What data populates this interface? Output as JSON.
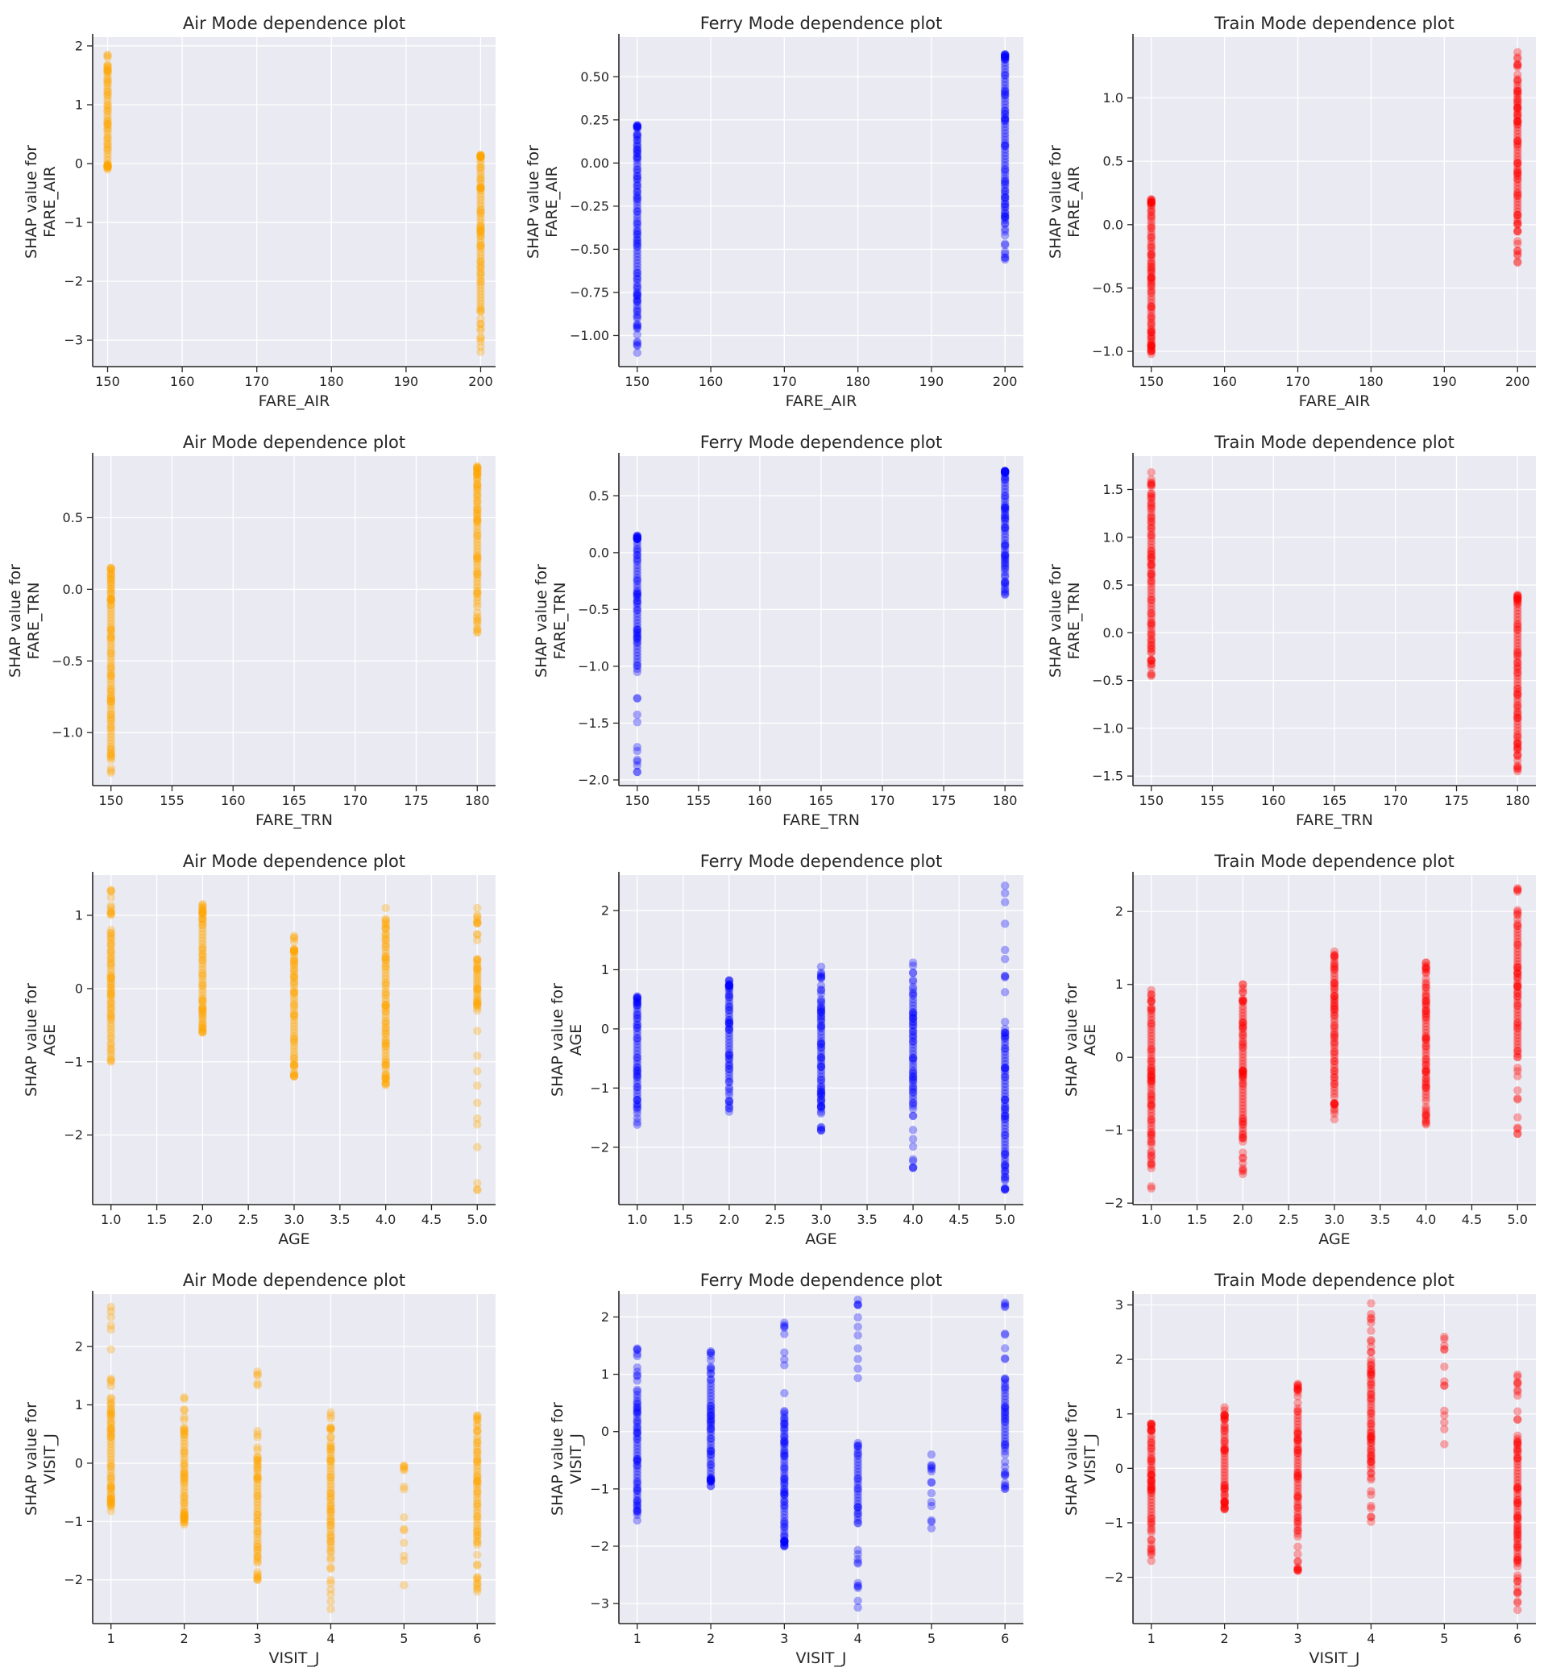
{
  "colors": {
    "air": "#ffa500",
    "ferry": "#0000ff",
    "train": "#ff0000",
    "panel_bg": "#eaeaf2"
  },
  "chart_data": [
    {
      "type": "scatter",
      "title": "Air Mode dependence plot",
      "xlabel": "FARE_AIR",
      "ylabel": [
        "SHAP value for",
        "FARE_AIR"
      ],
      "color": "#ffa500",
      "xlim": [
        148,
        202
      ],
      "ylim": [
        -3.45,
        2.15
      ],
      "xticks": [
        150,
        160,
        170,
        180,
        190,
        200
      ],
      "xtick_labels": [
        "150",
        "160",
        "170",
        "180",
        "190",
        "200"
      ],
      "yticks": [
        2,
        1,
        0,
        -1,
        -2,
        -3
      ],
      "ytick_labels": [
        "2",
        "1",
        "0",
        "−1",
        "−2",
        "−3"
      ],
      "groups": [
        {
          "x": 150,
          "ymin": -0.1,
          "ymax": 1.85,
          "dense": [
            0,
            1.55
          ]
        },
        {
          "x": 200,
          "ymin": -3.2,
          "ymax": 0.15,
          "dense": [
            -2.5,
            0.1
          ]
        }
      ]
    },
    {
      "type": "scatter",
      "title": "Ferry Mode dependence plot",
      "xlabel": "FARE_AIR",
      "ylabel": [
        "SHAP value for",
        "FARE_AIR"
      ],
      "color": "#0000ff",
      "xlim": [
        147.5,
        202.5
      ],
      "ylim": [
        -1.18,
        0.73
      ],
      "xticks": [
        150,
        160,
        170,
        180,
        190,
        200
      ],
      "xtick_labels": [
        "150",
        "160",
        "170",
        "180",
        "190",
        "200"
      ],
      "yticks": [
        0.5,
        0.25,
        0,
        -0.25,
        -0.5,
        -0.75,
        -1
      ],
      "ytick_labels": [
        "0.50",
        "0.25",
        "0.00",
        "−0.25",
        "−0.50",
        "−0.75",
        "−1.00"
      ],
      "groups": [
        {
          "x": 150,
          "ymin": -1.1,
          "ymax": 0.22,
          "dense": [
            -0.9,
            0.15
          ]
        },
        {
          "x": 200,
          "ymin": -0.56,
          "ymax": 0.63,
          "dense": [
            -0.35,
            0.6
          ]
        }
      ]
    },
    {
      "type": "scatter",
      "title": "Train Mode dependence plot",
      "xlabel": "FARE_AIR",
      "ylabel": [
        "SHAP value for",
        "FARE_AIR"
      ],
      "color": "#ff0000",
      "xlim": [
        147.5,
        202.5
      ],
      "ylim": [
        -1.12,
        1.48
      ],
      "xticks": [
        150,
        160,
        170,
        180,
        190,
        200
      ],
      "xtick_labels": [
        "150",
        "160",
        "170",
        "180",
        "190",
        "200"
      ],
      "yticks": [
        1,
        0.5,
        0,
        -0.5,
        -1
      ],
      "ytick_labels": [
        "1.0",
        "0.5",
        "0.0",
        "−0.5",
        "−1.0"
      ],
      "groups": [
        {
          "x": 150,
          "ymin": -1.02,
          "ymax": 0.2,
          "dense": [
            -0.95,
            0.15
          ]
        },
        {
          "x": 200,
          "ymin": -0.3,
          "ymax": 1.36,
          "dense": [
            0,
            1.1
          ]
        }
      ]
    },
    {
      "type": "scatter",
      "title": "Air Mode dependence plot",
      "xlabel": "FARE_TRN",
      "ylabel": [
        "SHAP value for",
        "FARE_TRN"
      ],
      "color": "#ffa500",
      "xlim": [
        148.5,
        181.5
      ],
      "ylim": [
        -1.37,
        0.93
      ],
      "xticks": [
        150,
        155,
        160,
        165,
        170,
        175,
        180
      ],
      "xtick_labels": [
        "150",
        "155",
        "160",
        "165",
        "170",
        "175",
        "180"
      ],
      "yticks": [
        0.5,
        0,
        -0.5,
        -1
      ],
      "ytick_labels": [
        "0.5",
        "0.0",
        "−0.5",
        "−1.0"
      ],
      "groups": [
        {
          "x": 150,
          "ymin": -1.28,
          "ymax": 0.15,
          "dense": [
            -1.1,
            0.05
          ]
        },
        {
          "x": 180,
          "ymin": -0.3,
          "ymax": 0.86,
          "dense": [
            -0.1,
            0.8
          ]
        }
      ]
    },
    {
      "type": "scatter",
      "title": "Ferry Mode dependence plot",
      "xlabel": "FARE_TRN",
      "ylabel": [
        "SHAP value for",
        "FARE_TRN"
      ],
      "color": "#0000ff",
      "xlim": [
        148.5,
        181.5
      ],
      "ylim": [
        -2.05,
        0.85
      ],
      "xticks": [
        150,
        155,
        160,
        165,
        170,
        175,
        180
      ],
      "xtick_labels": [
        "150",
        "155",
        "160",
        "165",
        "170",
        "175",
        "180"
      ],
      "yticks": [
        0.5,
        0,
        -0.5,
        -1,
        -1.5,
        -2
      ],
      "ytick_labels": [
        "0.5",
        "0.0",
        "−0.5",
        "−1.0",
        "−1.5",
        "−2.0"
      ],
      "groups": [
        {
          "x": 150,
          "ymin": -1.93,
          "ymax": 0.15,
          "dense": [
            -1.05,
            0.12
          ]
        },
        {
          "x": 180,
          "ymin": -0.37,
          "ymax": 0.72,
          "dense": [
            -0.2,
            0.7
          ]
        }
      ]
    },
    {
      "type": "scatter",
      "title": "Train Mode dependence plot",
      "xlabel": "FARE_TRN",
      "ylabel": [
        "SHAP value for",
        "FARE_TRN"
      ],
      "color": "#ff0000",
      "xlim": [
        148.5,
        181.5
      ],
      "ylim": [
        -1.6,
        1.85
      ],
      "xticks": [
        150,
        155,
        160,
        165,
        170,
        175,
        180
      ],
      "xtick_labels": [
        "150",
        "155",
        "160",
        "165",
        "170",
        "175",
        "180"
      ],
      "yticks": [
        1.5,
        1,
        0.5,
        0,
        -0.5,
        -1,
        -1.5
      ],
      "ytick_labels": [
        "1.5",
        "1.0",
        "0.5",
        "0.0",
        "−0.5",
        "−1.0",
        "−1.5"
      ],
      "groups": [
        {
          "x": 150,
          "ymin": -0.45,
          "ymax": 1.68,
          "dense": [
            -0.2,
            1.4
          ]
        },
        {
          "x": 180,
          "ymin": -1.45,
          "ymax": 0.4,
          "dense": [
            -1.2,
            0.3
          ]
        }
      ]
    },
    {
      "type": "scatter",
      "title": "Air Mode dependence plot",
      "xlabel": "AGE",
      "ylabel": [
        "SHAP value for",
        "AGE"
      ],
      "color": "#ffa500",
      "xlim": [
        0.8,
        5.2
      ],
      "ylim": [
        -2.95,
        1.55
      ],
      "xticks": [
        1,
        1.5,
        2,
        2.5,
        3,
        3.5,
        4,
        4.5,
        5
      ],
      "xtick_labels": [
        "1.0",
        "1.5",
        "2.0",
        "2.5",
        "3.0",
        "3.5",
        "4.0",
        "4.5",
        "5.0"
      ],
      "yticks": [
        1,
        0,
        -1,
        -2
      ],
      "ytick_labels": [
        "1",
        "0",
        "−1",
        "−2"
      ],
      "groups": [
        {
          "x": 1,
          "ymin": -1.0,
          "ymax": 1.35,
          "dense": [
            -0.6,
            0.8
          ]
        },
        {
          "x": 2,
          "ymin": -0.6,
          "ymax": 1.15,
          "dense": [
            -0.4,
            1.0
          ]
        },
        {
          "x": 3,
          "ymin": -1.2,
          "ymax": 0.72,
          "dense": [
            -1.0,
            0.5
          ]
        },
        {
          "x": 4,
          "ymin": -1.32,
          "ymax": 1.1,
          "dense": [
            -1.1,
            0.7
          ]
        },
        {
          "x": 5,
          "ymin": -2.75,
          "ymax": 1.1,
          "dense": [
            -0.3,
            0.4
          ]
        }
      ]
    },
    {
      "type": "scatter",
      "title": "Ferry Mode dependence plot",
      "xlabel": "AGE",
      "ylabel": [
        "SHAP value for",
        "AGE"
      ],
      "color": "#0000ff",
      "xlim": [
        0.8,
        5.2
      ],
      "ylim": [
        -2.97,
        2.6
      ],
      "xticks": [
        1,
        1.5,
        2,
        2.5,
        3,
        3.5,
        4,
        4.5,
        5
      ],
      "xtick_labels": [
        "1.0",
        "1.5",
        "2.0",
        "2.5",
        "3.0",
        "3.5",
        "4.0",
        "4.5",
        "5.0"
      ],
      "yticks": [
        2,
        1,
        0,
        -1,
        -2
      ],
      "ytick_labels": [
        "2",
        "1",
        "0",
        "−1",
        "−2"
      ],
      "groups": [
        {
          "x": 1,
          "ymin": -1.62,
          "ymax": 0.55,
          "dense": [
            -1.2,
            0.4
          ]
        },
        {
          "x": 2,
          "ymin": -1.4,
          "ymax": 0.82,
          "dense": [
            -0.9,
            0.7
          ]
        },
        {
          "x": 3,
          "ymin": -1.72,
          "ymax": 1.05,
          "dense": [
            -1.3,
            0.5
          ]
        },
        {
          "x": 4,
          "ymin": -2.35,
          "ymax": 1.12,
          "dense": [
            -1.3,
            0.5
          ]
        },
        {
          "x": 5,
          "ymin": -2.72,
          "ymax": 2.42,
          "dense": [
            -2.4,
            0.0
          ]
        }
      ]
    },
    {
      "type": "scatter",
      "title": "Train Mode dependence plot",
      "xlabel": "AGE",
      "ylabel": [
        "SHAP value for",
        "AGE"
      ],
      "color": "#ff0000",
      "xlim": [
        0.8,
        5.2
      ],
      "ylim": [
        -2.02,
        2.5
      ],
      "xticks": [
        1,
        1.5,
        2,
        2.5,
        3,
        3.5,
        4,
        4.5,
        5
      ],
      "xtick_labels": [
        "1.0",
        "1.5",
        "2.0",
        "2.5",
        "3.0",
        "3.5",
        "4.0",
        "4.5",
        "5.0"
      ],
      "yticks": [
        2,
        1,
        0,
        -1,
        -2
      ],
      "ytick_labels": [
        "2",
        "1",
        "0",
        "−1",
        "−2"
      ],
      "groups": [
        {
          "x": 1,
          "ymin": -1.8,
          "ymax": 0.92,
          "dense": [
            -1.2,
            0.6
          ]
        },
        {
          "x": 2,
          "ymin": -1.6,
          "ymax": 1.0,
          "dense": [
            -1.1,
            0.7
          ]
        },
        {
          "x": 3,
          "ymin": -0.85,
          "ymax": 1.45,
          "dense": [
            -0.5,
            1.2
          ]
        },
        {
          "x": 4,
          "ymin": -0.92,
          "ymax": 1.3,
          "dense": [
            -0.6,
            1.0
          ]
        },
        {
          "x": 5,
          "ymin": -1.05,
          "ymax": 2.32,
          "dense": [
            0.0,
            1.8
          ]
        }
      ]
    },
    {
      "type": "scatter",
      "title": "Air Mode dependence plot",
      "xlabel": "VISIT_J",
      "ylabel": [
        "SHAP value for",
        "VISIT_J"
      ],
      "color": "#ffa500",
      "xlim": [
        0.75,
        6.25
      ],
      "ylim": [
        -2.75,
        2.9
      ],
      "xticks": [
        1,
        2,
        3,
        4,
        5,
        6
      ],
      "xtick_labels": [
        "1",
        "2",
        "3",
        "4",
        "5",
        "6"
      ],
      "yticks": [
        2,
        1,
        0,
        -1,
        -2
      ],
      "ytick_labels": [
        "2",
        "1",
        "0",
        "−1",
        "−2"
      ],
      "groups": [
        {
          "x": 1,
          "ymin": -0.82,
          "ymax": 2.68,
          "dense": [
            -0.6,
            1.1
          ]
        },
        {
          "x": 2,
          "ymin": -1.05,
          "ymax": 1.13,
          "dense": [
            -0.9,
            0.5
          ]
        },
        {
          "x": 3,
          "ymin": -2.0,
          "ymax": 1.57,
          "dense": [
            -1.6,
            0.1
          ]
        },
        {
          "x": 4,
          "ymin": -2.5,
          "ymax": 0.87,
          "dense": [
            -1.5,
            0.3
          ]
        },
        {
          "x": 5,
          "ymin": -2.25,
          "ymax": 0.0,
          "sparse": true
        },
        {
          "x": 6,
          "ymin": -2.2,
          "ymax": 0.82,
          "dense": [
            -1.4,
            0.4
          ]
        }
      ]
    },
    {
      "type": "scatter",
      "title": "Ferry Mode dependence plot",
      "xlabel": "VISIT_J",
      "ylabel": [
        "SHAP value for",
        "VISIT_J"
      ],
      "color": "#0000ff",
      "xlim": [
        0.75,
        6.25
      ],
      "ylim": [
        -3.35,
        2.4
      ],
      "xticks": [
        1,
        2,
        3,
        4,
        5,
        6
      ],
      "xtick_labels": [
        "1",
        "2",
        "3",
        "4",
        "5",
        "6"
      ],
      "yticks": [
        2,
        1,
        0,
        -1,
        -2,
        -3
      ],
      "ytick_labels": [
        "2",
        "1",
        "0",
        "−1",
        "−2",
        "−3"
      ],
      "groups": [
        {
          "x": 1,
          "ymin": -1.55,
          "ymax": 1.45,
          "dense": [
            -1.2,
            0.7
          ]
        },
        {
          "x": 2,
          "ymin": -0.95,
          "ymax": 1.4,
          "dense": [
            -0.8,
            0.9
          ]
        },
        {
          "x": 3,
          "ymin": -2.0,
          "ymax": 1.9,
          "dense": [
            -1.9,
            0.3
          ]
        },
        {
          "x": 4,
          "ymin": -3.07,
          "ymax": 2.3,
          "dense": [
            -1.6,
            -0.2
          ]
        },
        {
          "x": 5,
          "ymin": -1.75,
          "ymax": -0.4,
          "sparse": true
        },
        {
          "x": 6,
          "ymin": -1.0,
          "ymax": 2.25,
          "dense": [
            -0.4,
            0.9
          ]
        }
      ]
    },
    {
      "type": "scatter",
      "title": "Train Mode dependence plot",
      "xlabel": "VISIT_J",
      "ylabel": [
        "SHAP value for",
        "VISIT_J"
      ],
      "color": "#ff0000",
      "xlim": [
        0.75,
        6.25
      ],
      "ylim": [
        -2.85,
        3.2
      ],
      "xticks": [
        1,
        2,
        3,
        4,
        5,
        6
      ],
      "xtick_labels": [
        "1",
        "2",
        "3",
        "4",
        "5",
        "6"
      ],
      "yticks": [
        3,
        2,
        1,
        0,
        -1,
        -2
      ],
      "ytick_labels": [
        "3",
        "2",
        "1",
        "0",
        "−1",
        "−2"
      ],
      "groups": [
        {
          "x": 1,
          "ymin": -1.7,
          "ymax": 0.82,
          "dense": [
            -1.1,
            0.6
          ]
        },
        {
          "x": 2,
          "ymin": -0.75,
          "ymax": 1.12,
          "dense": [
            -0.6,
            0.8
          ]
        },
        {
          "x": 3,
          "ymin": -1.88,
          "ymax": 1.55,
          "dense": [
            -1.2,
            1.1
          ]
        },
        {
          "x": 4,
          "ymin": -0.98,
          "ymax": 3.03,
          "dense": [
            0.0,
            2.0
          ]
        },
        {
          "x": 5,
          "ymin": 0.37,
          "ymax": 2.48,
          "sparse": true
        },
        {
          "x": 6,
          "ymin": -2.6,
          "ymax": 1.72,
          "dense": [
            -1.8,
            0.6
          ]
        }
      ]
    }
  ]
}
